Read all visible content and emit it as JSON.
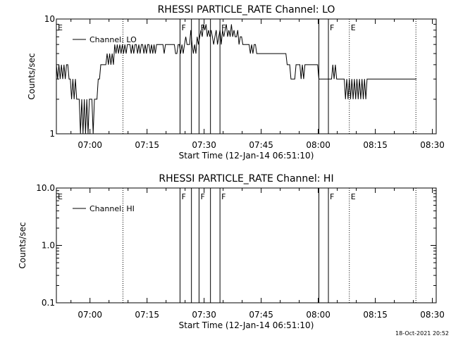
{
  "chart_data": [
    {
      "type": "line",
      "title": "RHESSI PARTICLE_RATE Channel: LO",
      "xlabel": "Start Time (12-Jan-14 06:51:10)",
      "ylabel": "Counts/sec",
      "yscale": "log",
      "ylim": [
        1,
        10
      ],
      "xlim": [
        "06:51:10",
        "08:31:00"
      ],
      "x_ticks": [
        "07:00",
        "07:15",
        "07:30",
        "07:45",
        "08:00",
        "08:15",
        "08:30"
      ],
      "y_ticks": [
        "1",
        "10"
      ],
      "legend": {
        "entries": [
          "Channel: LO"
        ],
        "placement": "top-left"
      },
      "flags": [
        {
          "label": "E",
          "time": "06:51:10",
          "style": "none"
        },
        {
          "label": "",
          "time": "07:08:40",
          "style": "dotted"
        },
        {
          "label": "F",
          "time": "07:23:40",
          "style": "solid"
        },
        {
          "label": "",
          "time": "07:26:40",
          "style": "solid"
        },
        {
          "label": "F",
          "time": "07:28:40",
          "style": "solid"
        },
        {
          "label": "",
          "time": "07:31:40",
          "style": "solid"
        },
        {
          "label": "F",
          "time": "07:34:10",
          "style": "solid"
        },
        {
          "label": "",
          "time": "08:00:10",
          "style": "solid"
        },
        {
          "label": "F",
          "time": "08:02:40",
          "style": "solid"
        },
        {
          "label": "E",
          "time": "08:08:10",
          "style": "dotted"
        },
        {
          "label": "",
          "time": "08:25:40",
          "style": "dotted"
        }
      ],
      "series": [
        {
          "name": "Channel: LO",
          "t_start": "06:51:10",
          "t_step_sec": 20,
          "values": [
            4,
            3,
            4,
            3,
            4,
            3,
            4,
            3,
            4,
            4,
            3,
            3,
            2,
            3,
            2,
            3,
            2,
            2,
            2,
            1,
            2,
            1,
            2,
            1,
            2,
            1,
            2,
            2,
            2,
            1,
            2,
            2,
            2,
            3,
            3,
            4,
            4,
            4,
            4,
            4,
            5,
            4,
            5,
            4,
            5,
            4,
            6,
            5,
            6,
            5,
            6,
            5,
            6,
            5,
            6,
            5,
            6,
            6,
            6,
            5,
            6,
            5,
            6,
            6,
            5,
            6,
            5,
            6,
            6,
            5,
            6,
            5,
            6,
            6,
            5,
            6,
            5,
            6,
            5,
            6,
            6,
            6,
            6,
            6,
            6,
            5,
            6,
            6,
            6,
            6,
            6,
            6,
            6,
            6,
            5,
            5,
            6,
            6,
            5,
            6,
            5,
            6,
            7,
            6,
            6,
            6,
            8,
            6,
            5,
            6,
            5,
            7,
            6,
            7,
            8,
            7,
            9,
            8,
            9,
            7,
            8,
            7,
            8,
            7,
            6,
            7,
            8,
            6,
            7,
            8,
            6,
            8,
            7,
            8,
            9,
            7,
            8,
            7,
            9,
            7,
            8,
            7,
            7,
            8,
            6,
            7,
            7,
            6,
            6,
            6,
            6,
            6,
            6,
            5,
            6,
            5,
            6,
            6,
            5,
            5,
            5,
            5,
            5,
            5,
            5,
            5,
            5,
            5,
            5,
            5,
            5,
            5,
            5,
            5,
            5,
            5,
            5,
            5,
            5,
            5,
            5,
            5,
            4,
            4,
            4,
            3,
            3,
            3,
            3,
            4,
            4,
            4,
            4,
            3,
            4,
            3,
            4,
            4,
            4,
            4,
            4,
            4,
            4,
            4,
            4,
            4,
            4,
            3,
            3,
            3,
            3,
            3,
            3,
            3,
            3,
            3,
            3,
            3,
            4,
            3,
            4,
            3,
            3,
            3,
            3,
            3,
            3,
            3,
            2,
            3,
            2,
            3,
            2,
            3,
            2,
            3,
            2,
            3,
            2,
            3,
            2,
            3,
            2,
            3,
            2,
            3,
            3,
            3,
            3,
            3,
            3,
            3,
            3,
            3,
            3,
            3,
            3,
            3,
            3,
            3,
            3,
            3,
            3,
            3,
            3,
            3,
            3,
            3,
            3,
            3,
            3,
            3,
            3,
            3,
            3,
            3,
            3,
            3,
            3,
            3,
            3,
            3,
            3,
            3,
            3
          ]
        }
      ]
    },
    {
      "type": "line",
      "title": "RHESSI PARTICLE_RATE Channel: HI",
      "xlabel": "Start Time (12-Jan-14 06:51:10)",
      "ylabel": "Counts/sec",
      "yscale": "log",
      "ylim": [
        0.1,
        10.0
      ],
      "xlim": [
        "06:51:10",
        "08:31:00"
      ],
      "x_ticks": [
        "07:00",
        "07:15",
        "07:30",
        "07:45",
        "08:00",
        "08:15",
        "08:30"
      ],
      "y_ticks": [
        "0.1",
        "1.0",
        "10.0"
      ],
      "legend": {
        "entries": [
          "Channel: HI"
        ],
        "placement": "top-left"
      },
      "flags": [
        {
          "label": "E",
          "time": "06:51:10",
          "style": "none"
        },
        {
          "label": "",
          "time": "07:08:40",
          "style": "dotted"
        },
        {
          "label": "F",
          "time": "07:23:40",
          "style": "solid"
        },
        {
          "label": "",
          "time": "07:26:40",
          "style": "solid"
        },
        {
          "label": "F",
          "time": "07:28:40",
          "style": "solid"
        },
        {
          "label": "",
          "time": "07:31:40",
          "style": "solid"
        },
        {
          "label": "F",
          "time": "07:34:10",
          "style": "solid"
        },
        {
          "label": "",
          "time": "08:00:10",
          "style": "solid"
        },
        {
          "label": "F",
          "time": "08:02:40",
          "style": "solid"
        },
        {
          "label": "E",
          "time": "08:08:10",
          "style": "dotted"
        },
        {
          "label": "",
          "time": "08:25:40",
          "style": "dotted"
        }
      ],
      "series": [
        {
          "name": "Channel: HI",
          "values": []
        }
      ]
    }
  ],
  "timestamp": "18-Oct-2021 20:52"
}
